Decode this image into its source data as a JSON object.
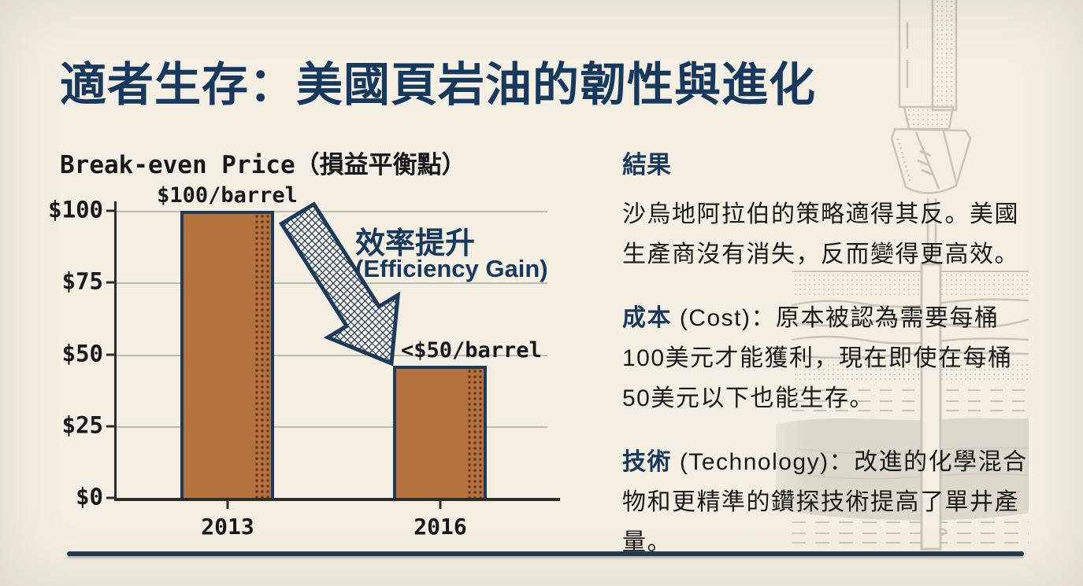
{
  "slide": {
    "title": "適者生存：美國頁岩油的韌性與進化",
    "accent_color": "#17395E",
    "background_color": "#F4EFE2",
    "footer_rule_color": "#1E3B55"
  },
  "chart_data": {
    "type": "bar",
    "title": "Break-even Price（損益平衡點）",
    "categories": [
      "2013",
      "2016"
    ],
    "values": [
      100,
      46
    ],
    "bar_labels": [
      "$100/barrel",
      "<$50/barrel"
    ],
    "ytick_labels": [
      "$100",
      "$75",
      "$50",
      "$25",
      "$0"
    ],
    "ylim": [
      0,
      100
    ],
    "grid": "horizontal",
    "legend": "none",
    "bar_color": "#B5723F",
    "bar_outline_color": "#1C3A5A",
    "annotation": {
      "zh": "效率提升",
      "en": "(Efficiency Gain)"
    }
  },
  "panel": {
    "heading": "結果",
    "paragraph1": "沙烏地阿拉伯的策略適得其反。美國生產商沒有消失，反而變得更高效。",
    "items": [
      {
        "lead_zh": "成本",
        "lead_en": " (Cost)：",
        "body": "原本被認為需要每桶100美元才能獲利，現在即使在每桶50美元以下也能生存。"
      },
      {
        "lead_zh": "技術",
        "lead_en": " (Technology)：",
        "body": "改進的化學混合物和更精準的鑽探技術提高了單井產量。"
      }
    ]
  },
  "icons": {
    "background": "drill-bit-and-rock-strata-illustration",
    "arrow": "decline-arrow-crosshatch"
  }
}
